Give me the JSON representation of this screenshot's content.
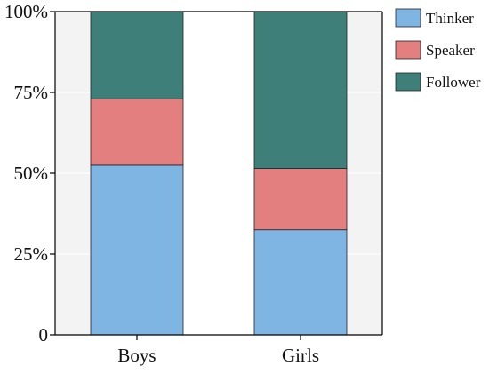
{
  "chart_data": {
    "type": "bar",
    "stacked": true,
    "categories": [
      "Boys",
      "Girls"
    ],
    "series": [
      {
        "name": "Thinker",
        "values": [
          52.5,
          32.5
        ],
        "color": "#7FB5E2"
      },
      {
        "name": "Speaker",
        "values": [
          20.5,
          19.0
        ],
        "color": "#E47F7F"
      },
      {
        "name": "Follower",
        "values": [
          27.0,
          48.5
        ],
        "color": "#3E7F7A"
      }
    ],
    "ylim": [
      0,
      100
    ],
    "yticks": [
      0,
      25,
      50,
      75,
      100
    ],
    "ytick_labels": [
      "0",
      "25%",
      "50%",
      "75%",
      "100%"
    ],
    "xlabel": "",
    "ylabel": "",
    "grid": true,
    "background_bands": true,
    "legend_placement": "right"
  },
  "colors": {
    "plot_background": "#F3F3F3",
    "band_background": "#FFFFFF",
    "grid": "#FFFFFF",
    "axis": "#000000"
  }
}
